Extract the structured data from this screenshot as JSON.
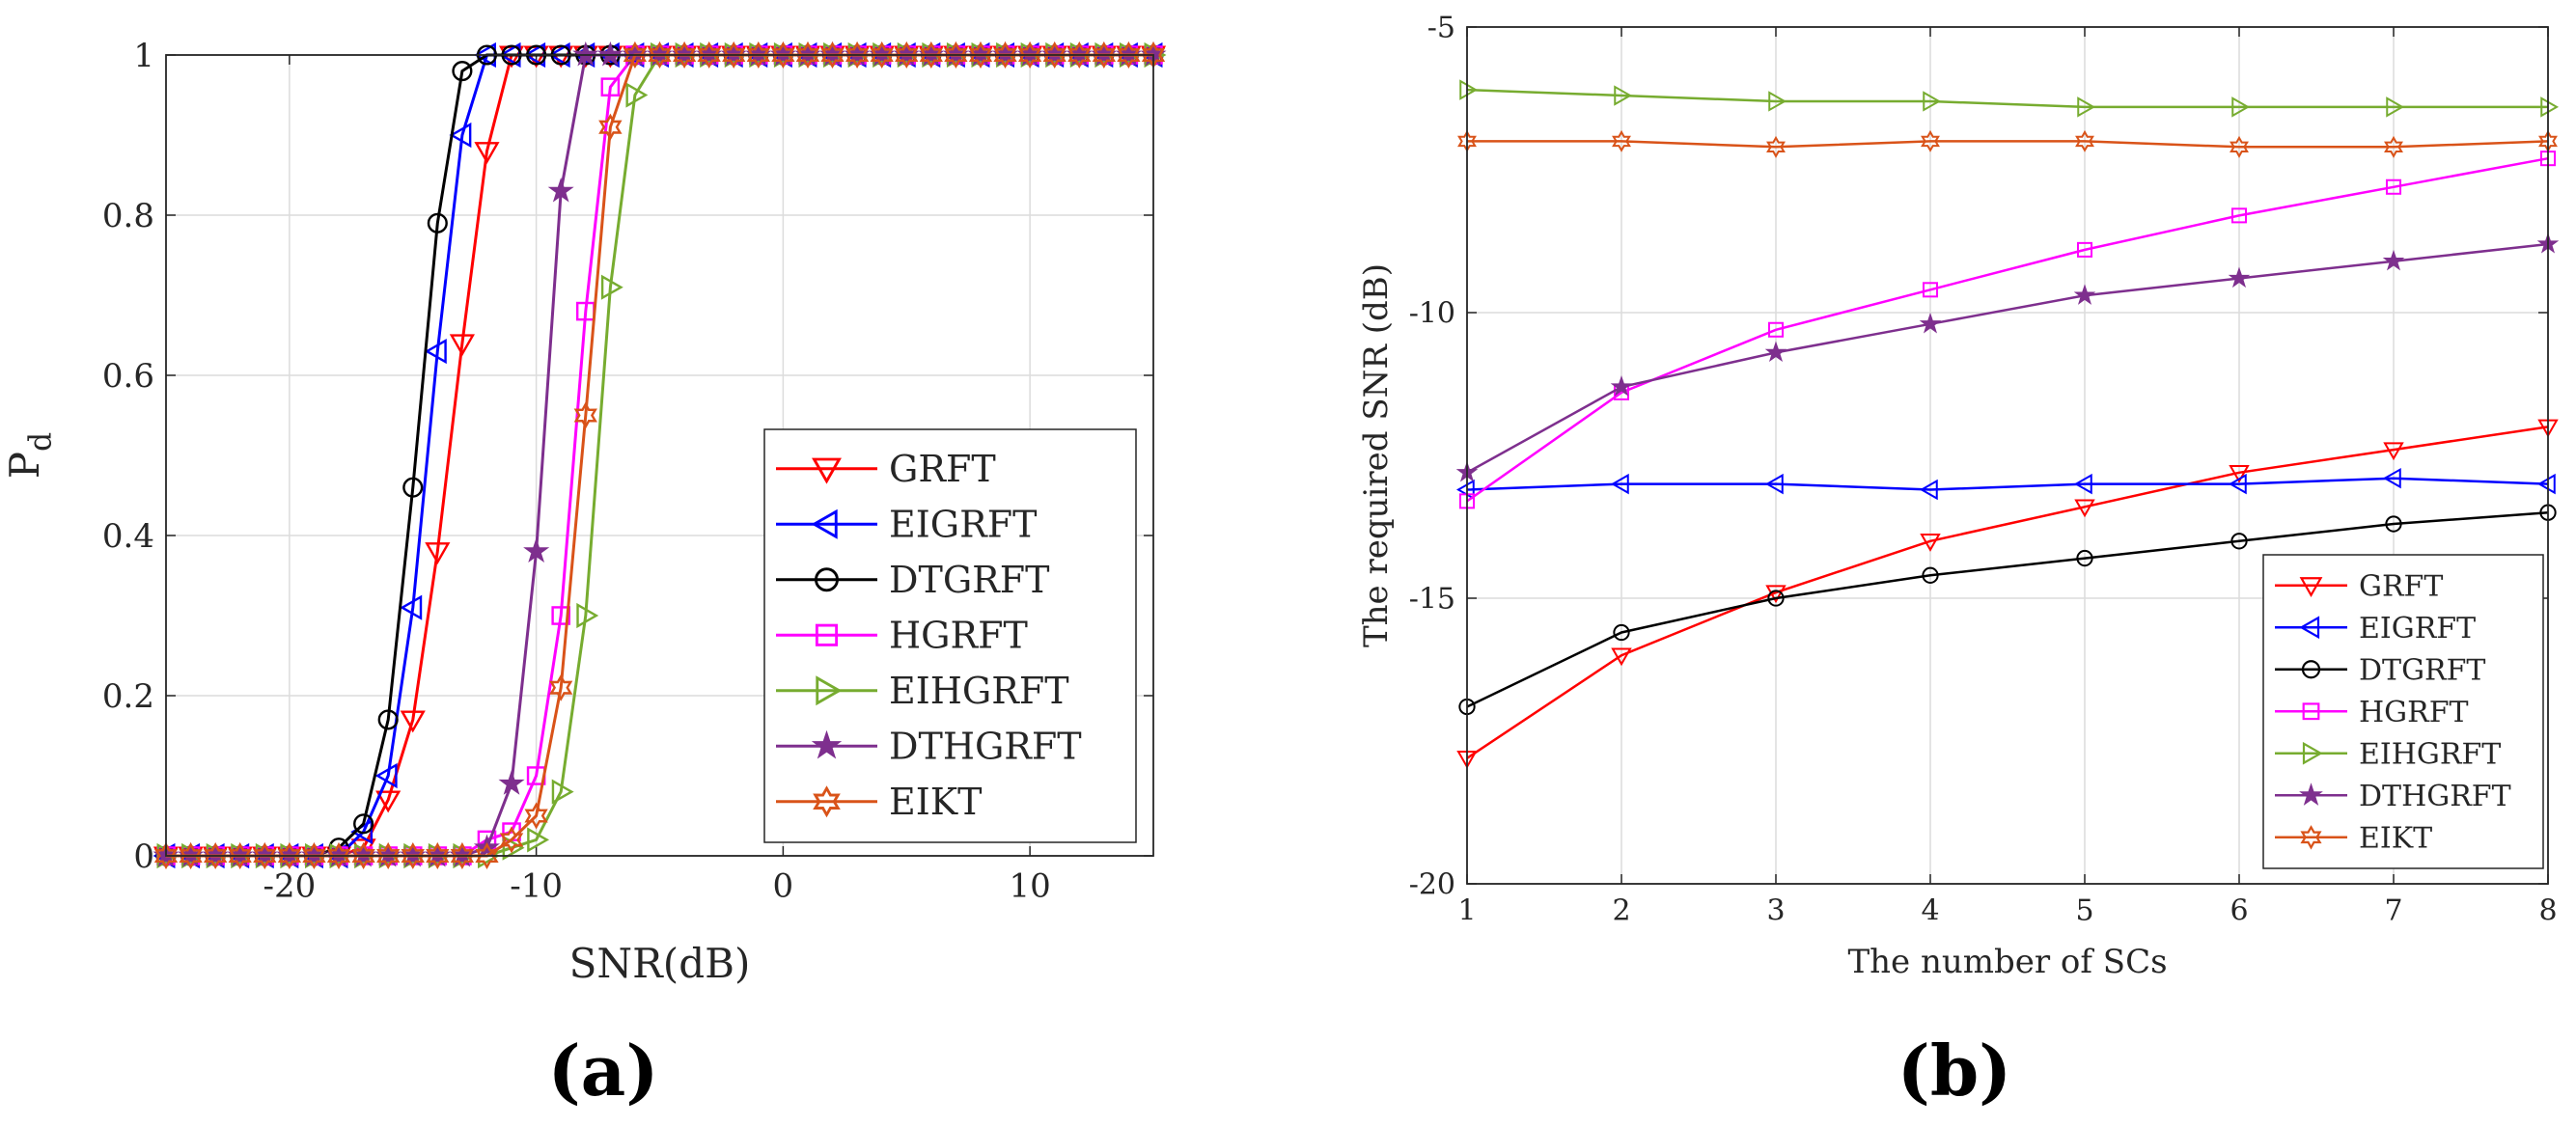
{
  "chart_data": [
    {
      "panel": "(a)",
      "type": "line",
      "xlabel": "SNR(dB)",
      "ylabel": "P",
      "ylabel_sub": "d",
      "xlim": [
        -25,
        15
      ],
      "ylim": [
        0,
        1
      ],
      "xticks": [
        "-20",
        "-10",
        "0",
        "10"
      ],
      "yticks": [
        "0",
        "0.2",
        "0.4",
        "0.6",
        "0.8",
        "1"
      ],
      "grid": true,
      "legend_position": "lower-right",
      "series": [
        {
          "name": "GRFT",
          "color": "#ff0000",
          "marker": "triangle-down",
          "x": [
            -25,
            -24,
            -23,
            -22,
            -21,
            -20,
            -19,
            -18,
            -17,
            -16,
            -15,
            -14,
            -13,
            -12,
            -11,
            -10,
            -9,
            -8,
            -7,
            -6,
            -5,
            -4,
            -3,
            -2,
            -1,
            0,
            1,
            2,
            3,
            4,
            5,
            6,
            7,
            8,
            9,
            10,
            11,
            12,
            13,
            14,
            15
          ],
          "y": [
            0,
            0,
            0,
            0,
            0,
            0,
            0,
            0,
            0.01,
            0.07,
            0.17,
            0.38,
            0.64,
            0.88,
            1,
            1,
            1,
            1,
            1,
            1,
            1,
            1,
            1,
            1,
            1,
            1,
            1,
            1,
            1,
            1,
            1,
            1,
            1,
            1,
            1,
            1,
            1,
            1,
            1,
            1,
            1
          ]
        },
        {
          "name": "EIGRFT",
          "color": "#0000ff",
          "marker": "triangle-left",
          "x": [
            -25,
            -24,
            -23,
            -22,
            -21,
            -20,
            -19,
            -18,
            -17,
            -16,
            -15,
            -14,
            -13,
            -12,
            -11,
            -10,
            -9,
            -8,
            -7,
            -6,
            -5,
            -4,
            -3,
            -2,
            -1,
            0,
            1,
            2,
            3,
            4,
            5,
            6,
            7,
            8,
            9,
            10,
            11,
            12,
            13,
            14,
            15
          ],
          "y": [
            0,
            0,
            0,
            0,
            0,
            0,
            0,
            0,
            0.03,
            0.1,
            0.31,
            0.63,
            0.9,
            1,
            1,
            1,
            1,
            1,
            1,
            1,
            1,
            1,
            1,
            1,
            1,
            1,
            1,
            1,
            1,
            1,
            1,
            1,
            1,
            1,
            1,
            1,
            1,
            1,
            1,
            1,
            1
          ]
        },
        {
          "name": "DTGRFT",
          "color": "#000000",
          "marker": "circle",
          "x": [
            -25,
            -24,
            -23,
            -22,
            -21,
            -20,
            -19,
            -18,
            -17,
            -16,
            -15,
            -14,
            -13,
            -12,
            -11,
            -10,
            -9,
            -8,
            -7,
            -6,
            -5,
            -4,
            -3,
            -2,
            -1,
            0,
            1,
            2,
            3,
            4,
            5,
            6,
            7,
            8,
            9,
            10,
            11,
            12,
            13,
            14,
            15
          ],
          "y": [
            0,
            0,
            0,
            0,
            0,
            0,
            0,
            0.01,
            0.04,
            0.17,
            0.46,
            0.79,
            0.98,
            1,
            1,
            1,
            1,
            1,
            1,
            1,
            1,
            1,
            1,
            1,
            1,
            1,
            1,
            1,
            1,
            1,
            1,
            1,
            1,
            1,
            1,
            1,
            1,
            1,
            1,
            1,
            1
          ]
        },
        {
          "name": "HGRFT",
          "color": "#ff00ff",
          "marker": "square",
          "x": [
            -25,
            -24,
            -23,
            -22,
            -21,
            -20,
            -19,
            -18,
            -17,
            -16,
            -15,
            -14,
            -13,
            -12,
            -11,
            -10,
            -9,
            -8,
            -7,
            -6,
            -5,
            -4,
            -3,
            -2,
            -1,
            0,
            1,
            2,
            3,
            4,
            5,
            6,
            7,
            8,
            9,
            10,
            11,
            12,
            13,
            14,
            15
          ],
          "y": [
            0,
            0,
            0,
            0,
            0,
            0,
            0,
            0,
            0,
            0,
            0,
            0,
            0,
            0.02,
            0.03,
            0.1,
            0.3,
            0.68,
            0.96,
            1,
            1,
            1,
            1,
            1,
            1,
            1,
            1,
            1,
            1,
            1,
            1,
            1,
            1,
            1,
            1,
            1,
            1,
            1,
            1,
            1,
            1
          ]
        },
        {
          "name": "EIHGRFT",
          "color": "#77ac30",
          "marker": "triangle-right",
          "x": [
            -25,
            -24,
            -23,
            -22,
            -21,
            -20,
            -19,
            -18,
            -17,
            -16,
            -15,
            -14,
            -13,
            -12,
            -11,
            -10,
            -9,
            -8,
            -7,
            -6,
            -5,
            -4,
            -3,
            -2,
            -1,
            0,
            1,
            2,
            3,
            4,
            5,
            6,
            7,
            8,
            9,
            10,
            11,
            12,
            13,
            14,
            15
          ],
          "y": [
            0,
            0,
            0,
            0,
            0,
            0,
            0,
            0,
            0,
            0,
            0,
            0,
            0,
            0,
            0.01,
            0.02,
            0.08,
            0.3,
            0.71,
            0.95,
            1,
            1,
            1,
            1,
            1,
            1,
            1,
            1,
            1,
            1,
            1,
            1,
            1,
            1,
            1,
            1,
            1,
            1,
            1,
            1,
            1
          ]
        },
        {
          "name": "DTHGRFT",
          "color": "#7e2f8e",
          "marker": "star",
          "x": [
            -25,
            -24,
            -23,
            -22,
            -21,
            -20,
            -19,
            -18,
            -17,
            -16,
            -15,
            -14,
            -13,
            -12,
            -11,
            -10,
            -9,
            -8,
            -7,
            -6,
            -5,
            -4,
            -3,
            -2,
            -1,
            0,
            1,
            2,
            3,
            4,
            5,
            6,
            7,
            8,
            9,
            10,
            11,
            12,
            13,
            14,
            15
          ],
          "y": [
            0,
            0,
            0,
            0,
            0,
            0,
            0,
            0,
            0,
            0,
            0,
            0,
            0,
            0.01,
            0.09,
            0.38,
            0.83,
            1,
            1,
            1,
            1,
            1,
            1,
            1,
            1,
            1,
            1,
            1,
            1,
            1,
            1,
            1,
            1,
            1,
            1,
            1,
            1,
            1,
            1,
            1,
            1
          ]
        },
        {
          "name": "EIKT",
          "color": "#d95319",
          "marker": "hexagram",
          "x": [
            -25,
            -24,
            -23,
            -22,
            -21,
            -20,
            -19,
            -18,
            -17,
            -16,
            -15,
            -14,
            -13,
            -12,
            -11,
            -10,
            -9,
            -8,
            -7,
            -6,
            -5,
            -4,
            -3,
            -2,
            -1,
            0,
            1,
            2,
            3,
            4,
            5,
            6,
            7,
            8,
            9,
            10,
            11,
            12,
            13,
            14,
            15
          ],
          "y": [
            0,
            0,
            0,
            0,
            0,
            0,
            0,
            0,
            0,
            0,
            0,
            0,
            0,
            0,
            0.02,
            0.05,
            0.21,
            0.55,
            0.91,
            1,
            1,
            1,
            1,
            1,
            1,
            1,
            1,
            1,
            1,
            1,
            1,
            1,
            1,
            1,
            1,
            1,
            1,
            1,
            1,
            1,
            1
          ]
        }
      ]
    },
    {
      "panel": "(b)",
      "type": "line",
      "xlabel": "The number of SCs",
      "ylabel": "The required SNR (dB)",
      "xlim": [
        1,
        8
      ],
      "ylim": [
        -20,
        -5
      ],
      "xticks": [
        "1",
        "2",
        "3",
        "4",
        "5",
        "6",
        "7",
        "8"
      ],
      "yticks": [
        "-20",
        "-15",
        "-10",
        "-5"
      ],
      "grid": true,
      "legend_position": "lower-right",
      "series": [
        {
          "name": "GRFT",
          "color": "#ff0000",
          "marker": "triangle-down",
          "x": [
            1,
            2,
            3,
            4,
            5,
            6,
            7,
            8
          ],
          "y": [
            -17.8,
            -16.0,
            -14.9,
            -14.0,
            -13.4,
            -12.8,
            -12.4,
            -12.0
          ]
        },
        {
          "name": "EIGRFT",
          "color": "#0000ff",
          "marker": "triangle-left",
          "x": [
            1,
            2,
            3,
            4,
            5,
            6,
            7,
            8
          ],
          "y": [
            -13.1,
            -13.0,
            -13.0,
            -13.1,
            -13.0,
            -13.0,
            -12.9,
            -13.0
          ]
        },
        {
          "name": "DTGRFT",
          "color": "#000000",
          "marker": "circle",
          "x": [
            1,
            2,
            3,
            4,
            5,
            6,
            7,
            8
          ],
          "y": [
            -16.9,
            -15.6,
            -15.0,
            -14.6,
            -14.3,
            -14.0,
            -13.7,
            -13.5
          ]
        },
        {
          "name": "HGRFT",
          "color": "#ff00ff",
          "marker": "square",
          "x": [
            1,
            2,
            3,
            4,
            5,
            6,
            7,
            8
          ],
          "y": [
            -13.3,
            -11.4,
            -10.3,
            -9.6,
            -8.9,
            -8.3,
            -7.8,
            -7.3
          ]
        },
        {
          "name": "EIHGRFT",
          "color": "#77ac30",
          "marker": "triangle-right",
          "x": [
            1,
            2,
            3,
            4,
            5,
            6,
            7,
            8
          ],
          "y": [
            -6.1,
            -6.2,
            -6.3,
            -6.3,
            -6.4,
            -6.4,
            -6.4,
            -6.4
          ]
        },
        {
          "name": "DTHGRFT",
          "color": "#7e2f8e",
          "marker": "star",
          "x": [
            1,
            2,
            3,
            4,
            5,
            6,
            7,
            8
          ],
          "y": [
            -12.8,
            -11.3,
            -10.7,
            -10.2,
            -9.7,
            -9.4,
            -9.1,
            -8.8
          ]
        },
        {
          "name": "EIKT",
          "color": "#d95319",
          "marker": "hexagram",
          "x": [
            1,
            2,
            3,
            4,
            5,
            6,
            7,
            8
          ],
          "y": [
            -7.0,
            -7.0,
            -7.1,
            -7.0,
            -7.0,
            -7.1,
            -7.1,
            -7.0
          ]
        }
      ]
    }
  ],
  "panel_labels": [
    "(a)",
    "(b)"
  ]
}
